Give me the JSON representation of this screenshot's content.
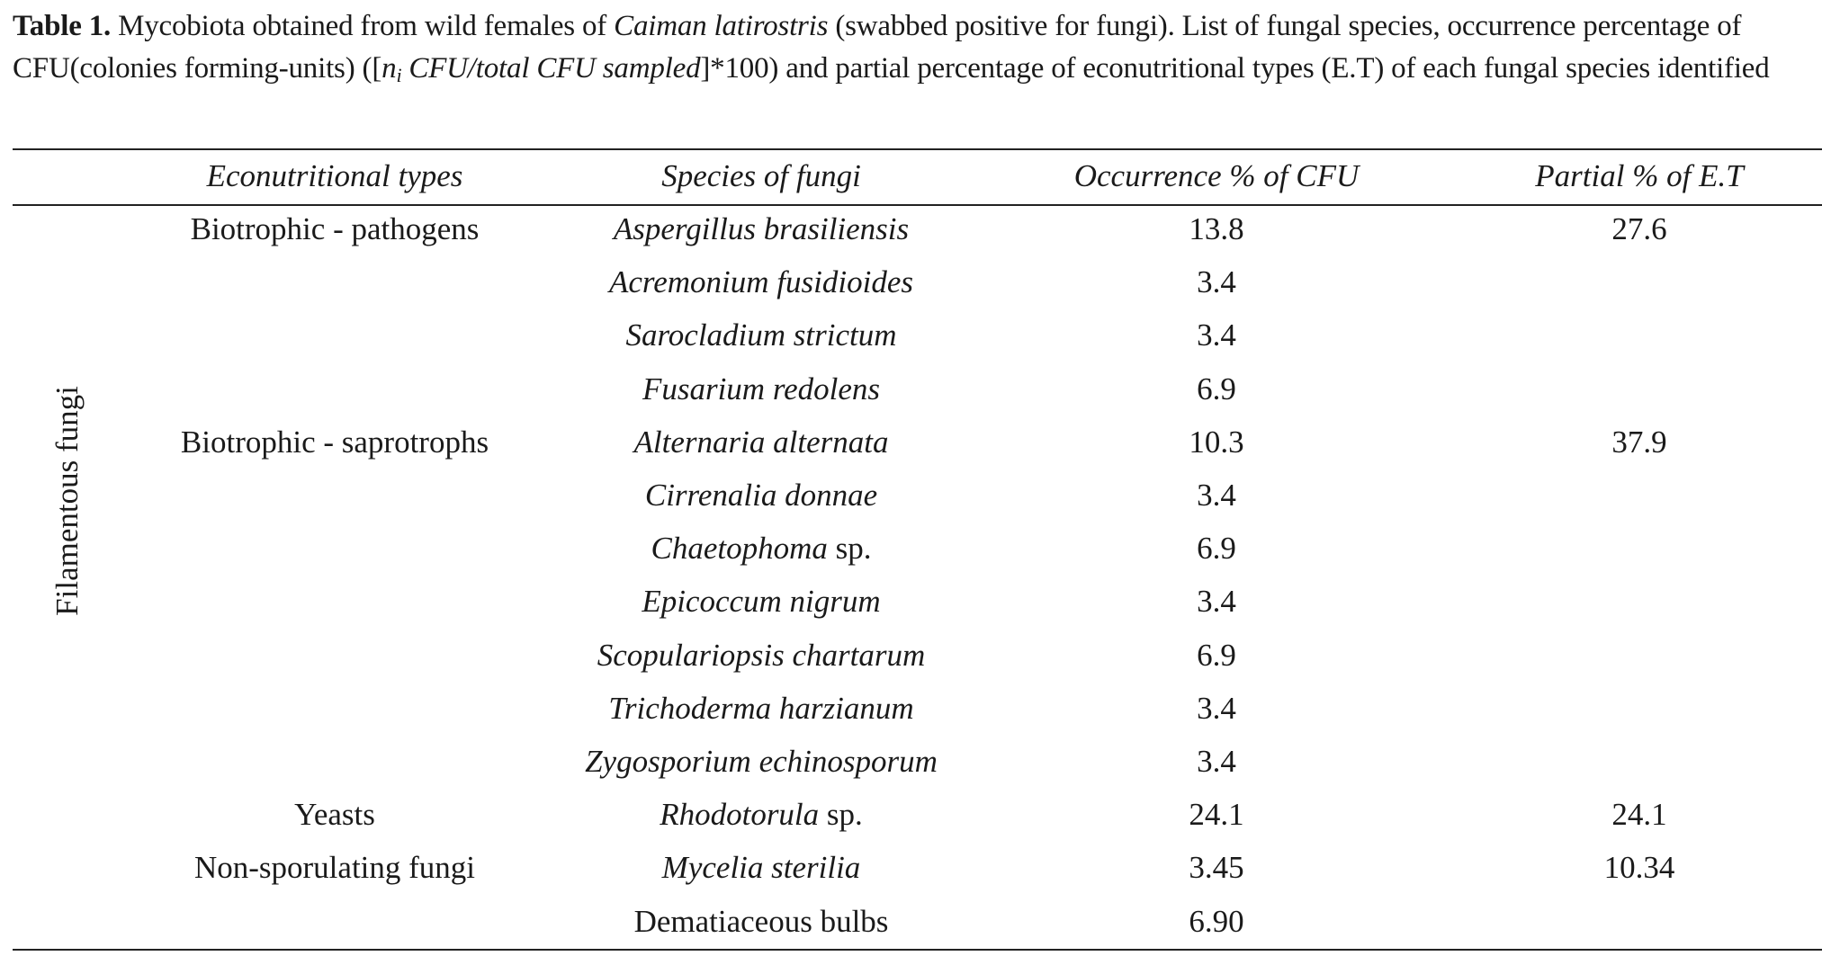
{
  "caption": {
    "label": "Table 1.",
    "text_1": " Mycobiota obtained from wild females of ",
    "species_italic": "Caiman latirostris",
    "text_2": " (swabbed positive for fungi). List of fungal species, occurrence percentage of CFU(colonies forming-units) ([",
    "formula_n": "n",
    "formula_sub": "i",
    "formula_rest": " CFU/total CFU sampled",
    "formula_mult": "]*100",
    "text_3": ") and partial percentage of econutritional types (E.T) of each fungal species identified"
  },
  "table": {
    "headers": {
      "type": "Econutritional types",
      "species": "Species of fungi",
      "occurrence": "Occurrence % of CFU",
      "partial": "Partial % of E.T"
    },
    "group_label": "Filamentous fungi",
    "types": [
      {
        "label": "Biotrophic - pathogens",
        "row": 0
      },
      {
        "label": "Biotrophic - saprotrophs",
        "row": 4
      },
      {
        "label": "Yeasts",
        "row": 11
      },
      {
        "label": "Non-sporulating fungi",
        "row": 12
      }
    ],
    "partials": [
      {
        "value": "27.6",
        "row": 0
      },
      {
        "value": "37.9",
        "row": 4
      },
      {
        "value": "24.1",
        "row": 11
      },
      {
        "value": "10.34",
        "row": 12
      }
    ],
    "rows": [
      {
        "species_italic": "Aspergillus brasiliensis",
        "species_plain": "",
        "occurrence": "13.8"
      },
      {
        "species_italic": "Acremonium fusidioides",
        "species_plain": "",
        "occurrence": "3.4"
      },
      {
        "species_italic": "Sarocladium strictum",
        "species_plain": "",
        "occurrence": "3.4"
      },
      {
        "species_italic": "Fusarium redolens",
        "species_plain": "",
        "occurrence": "6.9"
      },
      {
        "species_italic": "Alternaria alternata",
        "species_plain": "",
        "occurrence": "10.3"
      },
      {
        "species_italic": "Cirrenalia donnae",
        "species_plain": "",
        "occurrence": "3.4"
      },
      {
        "species_italic": "Chaetophoma",
        "species_plain": " sp.",
        "occurrence": "6.9"
      },
      {
        "species_italic": "Epicoccum nigrum",
        "species_plain": "",
        "occurrence": "3.4"
      },
      {
        "species_italic": "Scopulariopsis chartarum",
        "species_plain": "",
        "occurrence": "6.9"
      },
      {
        "species_italic": "Trichoderma harzianum",
        "species_plain": "",
        "occurrence": "3.4"
      },
      {
        "species_italic": "Zygosporium echinosporum",
        "species_plain": "",
        "occurrence": "3.4"
      },
      {
        "species_italic": "Rhodotorula",
        "species_plain": " sp.",
        "occurrence": "24.1"
      },
      {
        "species_italic": "Mycelia sterilia",
        "species_plain": "",
        "occurrence": "3.45"
      },
      {
        "species_italic": "",
        "species_plain": "Dematiaceous bulbs",
        "occurrence": "6.90"
      }
    ]
  }
}
